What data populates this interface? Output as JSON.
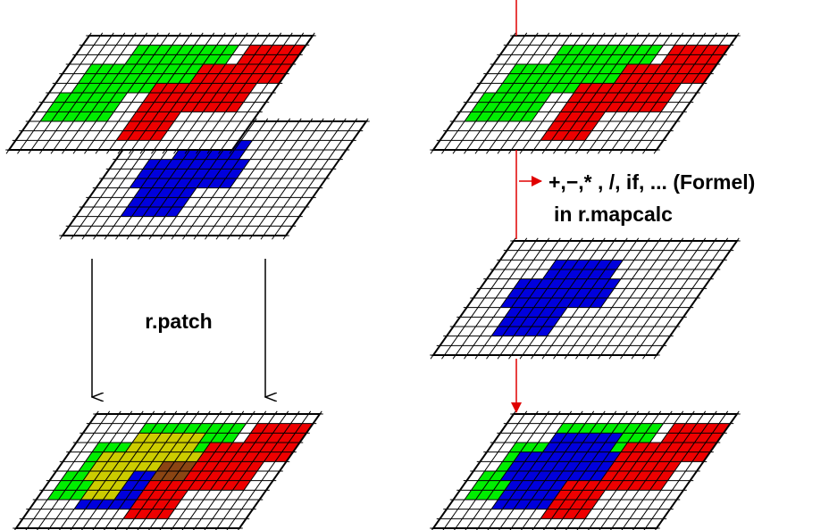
{
  "labels": {
    "patch": "r.patch",
    "formula": "+,−,* , /, if, ... (Formel)",
    "mapcalc": "in r.mapcalc"
  }
}
